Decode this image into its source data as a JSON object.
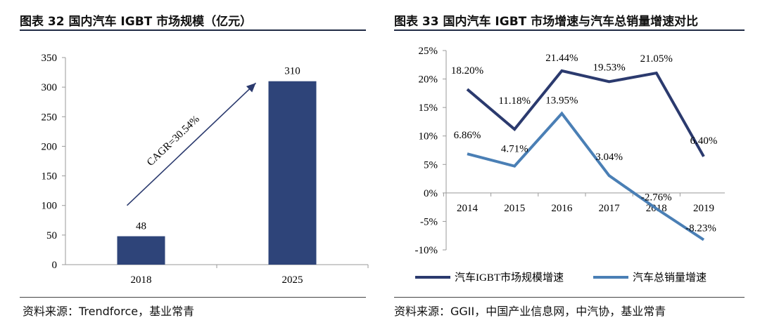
{
  "left": {
    "title": "图表 32  国内汽车 IGBT 市场规模（亿元）",
    "source": "资料来源：Trendforce，基业常青"
  },
  "right": {
    "title": "图表 33  国内汽车 IGBT 市场增速与汽车总销量增速对比",
    "source": "资料来源：GGII，中国产业信息网，中汽协，基业常青"
  },
  "chart_data": [
    {
      "type": "bar",
      "title": "国内汽车 IGBT 市场规模（亿元）",
      "categories": [
        "2018",
        "2025"
      ],
      "values": [
        48,
        310
      ],
      "value_labels": [
        "48",
        "310"
      ],
      "ylim": [
        0,
        350
      ],
      "yticks": [
        0,
        50,
        100,
        150,
        200,
        250,
        300,
        350
      ],
      "ytick_labels": [
        "0",
        "50",
        "100",
        "150",
        "200",
        "250",
        "300",
        "350"
      ],
      "annotation": "CAGR=30.54%",
      "color": "#2e4479"
    },
    {
      "type": "line",
      "title": "国内汽车 IGBT 市场增速与汽车总销量增速对比",
      "categories": [
        "2014",
        "2015",
        "2016",
        "2017",
        "2018",
        "2019"
      ],
      "ylim": [
        -10,
        25
      ],
      "yticks": [
        -10,
        -5,
        0,
        5,
        10,
        15,
        20,
        25
      ],
      "ytick_labels": [
        "-10%",
        "-5%",
        "0%",
        "5%",
        "10%",
        "15%",
        "20%",
        "25%"
      ],
      "series": [
        {
          "name": "汽车IGBT市场规模增速",
          "values": [
            18.2,
            11.18,
            21.44,
            19.53,
            21.05,
            6.4
          ],
          "labels": [
            "18.20%",
            "11.18%",
            "21.44%",
            "19.53%",
            "21.05%",
            "6.40%"
          ],
          "color": "#2b3a6e"
        },
        {
          "name": "汽车总销量增速",
          "values": [
            6.86,
            4.71,
            13.95,
            3.04,
            -2.76,
            -8.23
          ],
          "labels": [
            "6.86%",
            "4.71%",
            "13.95%",
            "3.04%",
            "-2.76%",
            "-8.23%"
          ],
          "color": "#4a7fb5"
        }
      ]
    }
  ]
}
